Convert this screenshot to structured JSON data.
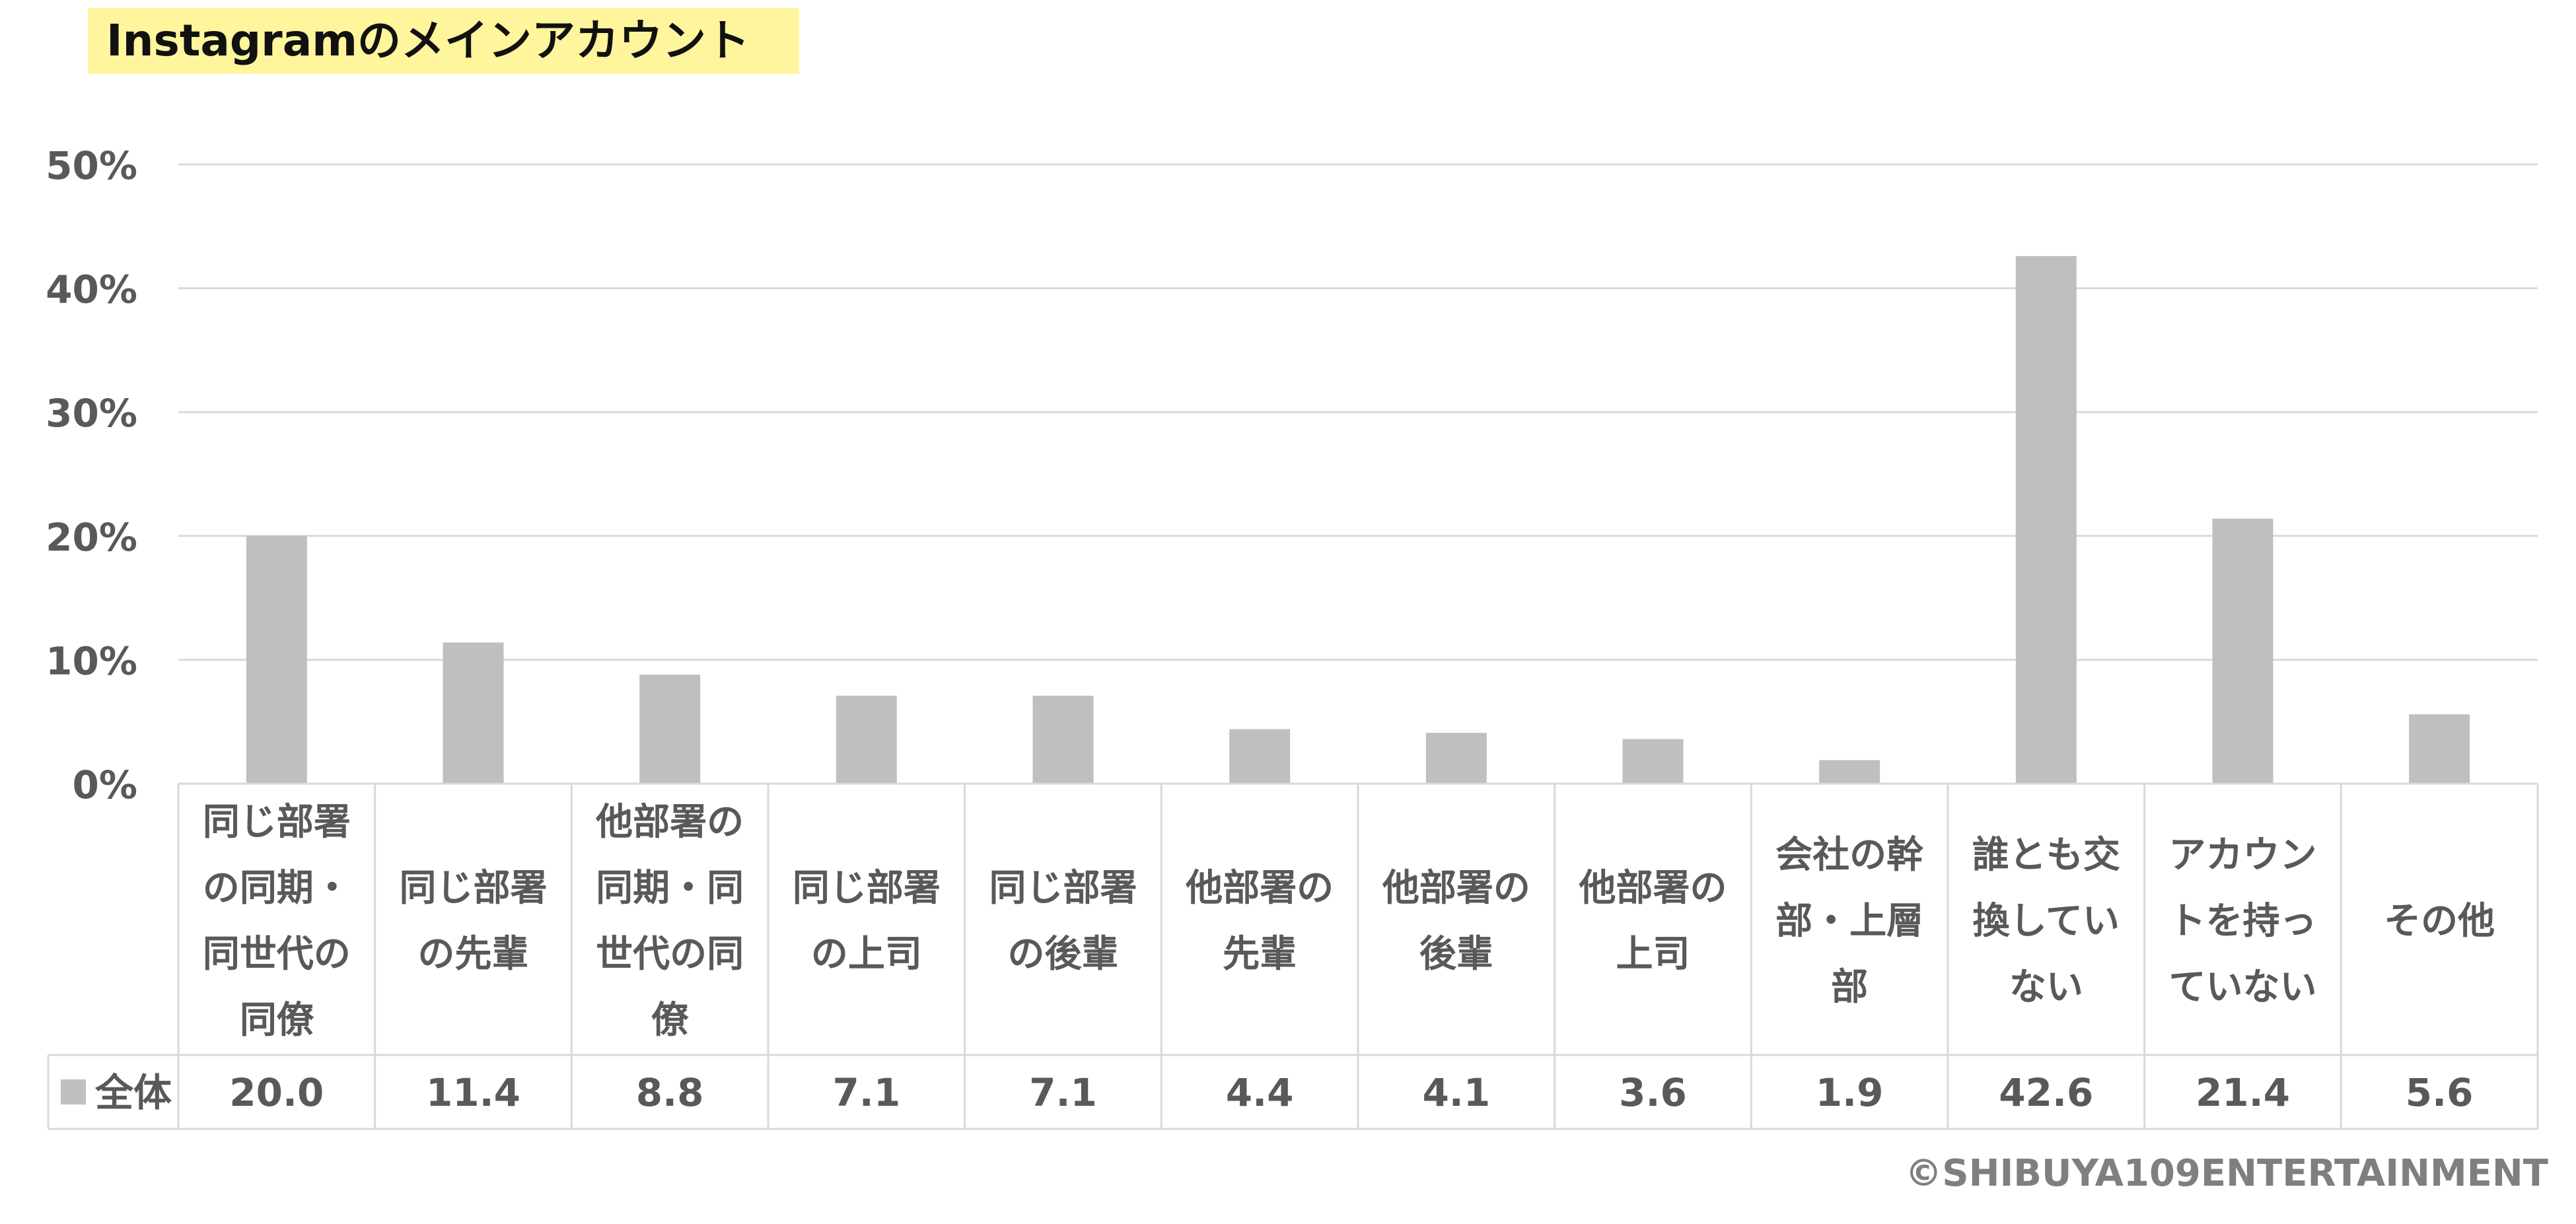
{
  "title": "Instagramのメインアカウント",
  "copyright": "©SHIBUYA109ENTERTAINMENT",
  "colors": {
    "bar": "#bfbfbf",
    "grid": "#d9d9d9",
    "text": "#595959",
    "title_bg": "#fff59d"
  },
  "chart_data": {
    "type": "bar",
    "title": "Instagramのメインアカウント",
    "categories": [
      [
        "同じ部署",
        "の同期・",
        "同世代の",
        "同僚"
      ],
      [
        "同じ部署",
        "の先輩"
      ],
      [
        "他部署の",
        "同期・同",
        "世代の同",
        "僚"
      ],
      [
        "同じ部署",
        "の上司"
      ],
      [
        "同じ部署",
        "の後輩"
      ],
      [
        "他部署の",
        "先輩"
      ],
      [
        "他部署の",
        "後輩"
      ],
      [
        "他部署の",
        "上司"
      ],
      [
        "会社の幹",
        "部・上層",
        "部"
      ],
      [
        "誰とも交",
        "換してい",
        "ない"
      ],
      [
        "アカウン",
        "トを持っ",
        "ていない"
      ],
      [
        "その他"
      ]
    ],
    "series": [
      {
        "name": "全体",
        "values": [
          20.0,
          11.4,
          8.8,
          7.1,
          7.1,
          4.4,
          4.1,
          3.6,
          1.9,
          42.6,
          21.4,
          5.6
        ],
        "labels": [
          "20.0",
          "11.4",
          "8.8",
          "7.1",
          "7.1",
          "4.4",
          "4.1",
          "3.6",
          "1.9",
          "42.6",
          "21.4",
          "5.6"
        ]
      }
    ],
    "ylim": [
      0,
      50
    ],
    "yticks": [
      "0%",
      "10%",
      "20%",
      "30%",
      "40%",
      "50%"
    ],
    "ytick_values": [
      0,
      10,
      20,
      30,
      40,
      50
    ],
    "grid": true,
    "legend": "in data table"
  }
}
